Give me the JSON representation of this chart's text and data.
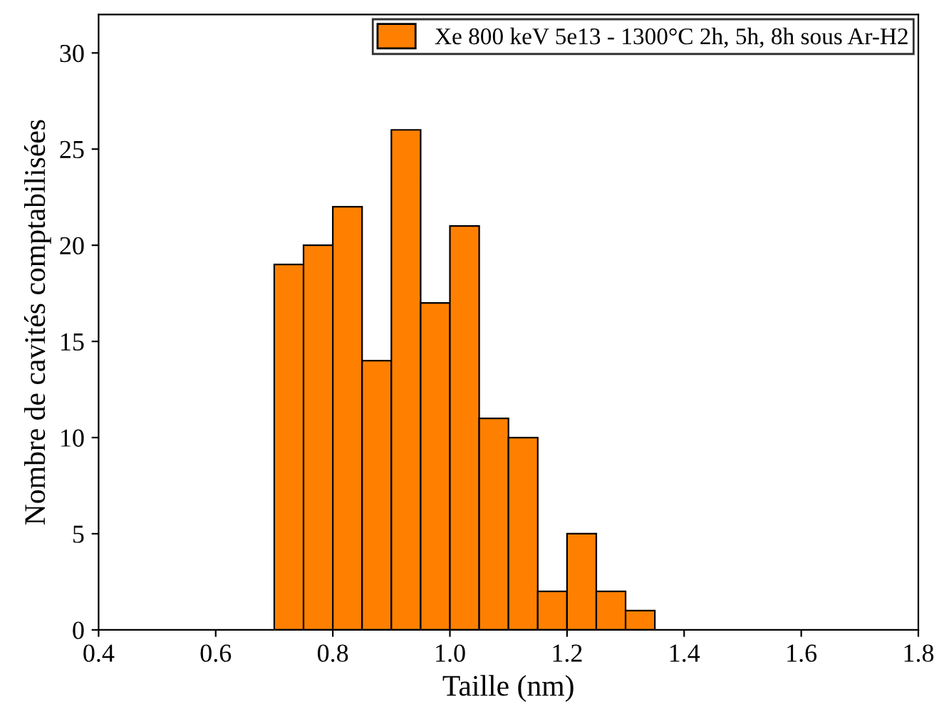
{
  "chart_data": {
    "type": "histogram",
    "xlabel": "Taille (nm)",
    "ylabel": "Nombre de cavités comptabilisées",
    "bins": [
      0.7,
      0.75,
      0.8,
      0.85,
      0.9,
      0.95,
      1.0,
      1.05,
      1.1,
      1.15,
      1.2,
      1.25,
      1.3,
      1.35
    ],
    "series": [
      {
        "name": "Xe 800 keV 5e13 - 1300°C 2h, 5h, 8h sous Ar-H2",
        "color": "#ff8000",
        "values": [
          19,
          20,
          22,
          14,
          26,
          17,
          21,
          11,
          10,
          2,
          5,
          2,
          1
        ]
      }
    ],
    "xlim": [
      0.4,
      1.8
    ],
    "xticks": [
      {
        "value": 0.4,
        "label": "0.4"
      },
      {
        "value": 0.6,
        "label": "0.6"
      },
      {
        "value": 0.8,
        "label": "0.8"
      },
      {
        "value": 1.0,
        "label": "1.0"
      },
      {
        "value": 1.2,
        "label": "1.2"
      },
      {
        "value": 1.4,
        "label": "1.4"
      },
      {
        "value": 1.6,
        "label": "1.6"
      },
      {
        "value": 1.8,
        "label": "1.8"
      }
    ],
    "ylim": [
      0,
      32
    ],
    "yticks": [
      0,
      5,
      10,
      15,
      20,
      25,
      30
    ],
    "grid": false,
    "legend": "top right"
  }
}
